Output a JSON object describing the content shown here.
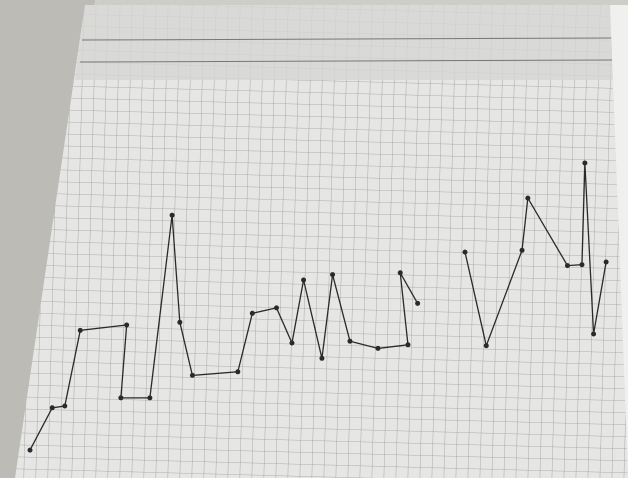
{
  "chart_data": {
    "type": "line",
    "x": [
      0,
      2.3,
      3.6,
      5.2,
      10.0,
      9.4,
      12.4,
      14.7,
      15.5,
      16.8,
      21.5,
      23.0,
      25.5,
      27.1,
      28.3,
      30.2,
      31.3,
      33.1,
      36.0,
      39.1,
      38.3,
      40.1,
      null,
      45.0,
      47.2,
      50.9,
      51.5,
      55.6,
      57.1,
      57.4,
      58.3,
      59.6
    ],
    "values": [
      1.1,
      5.8,
      6.0,
      14.4,
      15.0,
      6.9,
      6.9,
      27.2,
      15.3,
      9.4,
      9.8,
      16.3,
      16.9,
      13.0,
      20.0,
      11.3,
      20.6,
      13.2,
      12.4,
      12.8,
      20.8,
      17.4,
      null,
      23.1,
      12.7,
      23.3,
      29.1,
      21.6,
      21.7,
      33.0,
      14.0,
      22.0
    ],
    "color": "#2a2a2a",
    "xlim": [
      0,
      60
    ],
    "ylim": [
      0,
      40
    ]
  }
}
